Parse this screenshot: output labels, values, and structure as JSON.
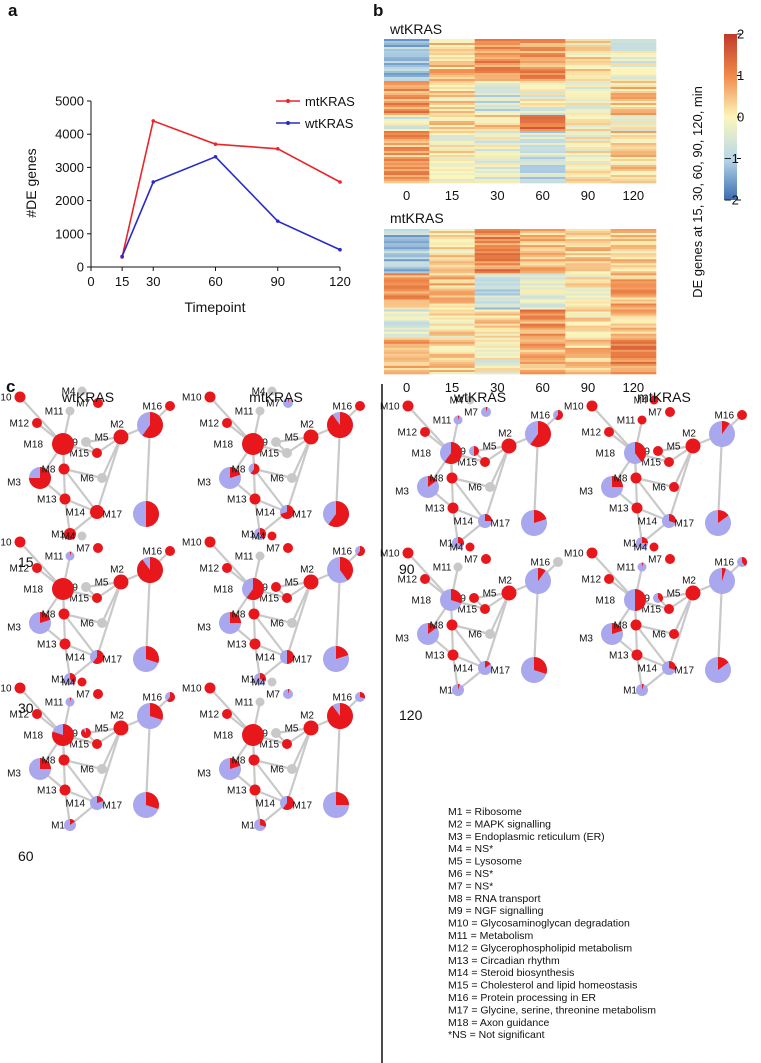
{
  "panel_labels": {
    "a": "a",
    "b": "b",
    "c": "c"
  },
  "chart_data": [
    {
      "type": "line",
      "x": [
        15,
        30,
        60,
        90,
        120
      ],
      "series": [
        {
          "name": "mtKRAS",
          "color": "#e8262b",
          "values": [
            300,
            4400,
            3700,
            3560,
            2560
          ]
        },
        {
          "name": "wtKRAS",
          "color": "#2a2ac8",
          "values": [
            320,
            2560,
            3320,
            1380,
            520
          ]
        }
      ],
      "xticks": [
        "0",
        "15",
        "30",
        "60",
        "90",
        "120"
      ],
      "yticks": [
        "0",
        "1000",
        "2000",
        "3000",
        "4000",
        "5000"
      ],
      "xlim": [
        0,
        120
      ],
      "ylim": [
        0,
        5000
      ],
      "xlabel": "Timepoint",
      "ylabel": "#DE genes"
    },
    {
      "type": "heatmap",
      "title": "wtKRAS",
      "columns": [
        "0",
        "15",
        "30",
        "60",
        "90",
        "120"
      ]
    },
    {
      "type": "heatmap",
      "title": "mtKRAS",
      "columns": [
        "0",
        "15",
        "30",
        "60",
        "90",
        "120"
      ]
    }
  ],
  "heatmap": {
    "colorbar_ticks": [
      "2",
      "1",
      "0",
      "−1",
      "−2"
    ],
    "colorbar_values": [
      2,
      1,
      0,
      -1,
      -2
    ],
    "side_label": "DE genes at 15, 30, 60, 90, 120, min",
    "colors": {
      "high": "#c0392b",
      "mid": "#fcf6bc",
      "low": "#3a6cb0"
    }
  },
  "networks": {
    "column_titles": [
      "wtKRAS",
      "mtKRAS",
      "wtKRAS",
      "mtKRAS"
    ],
    "timepoints": [
      "15",
      "30",
      "60",
      "90",
      "120"
    ],
    "node_labels": [
      "M1",
      "M2",
      "M3",
      "M4",
      "M5",
      "M6",
      "M7",
      "M8",
      "M9",
      "M10",
      "M11",
      "M12",
      "M13",
      "M14",
      "M15",
      "M16",
      "M17",
      "M18"
    ],
    "colors": {
      "up": "#e8171b",
      "down": "#a9a7ee",
      "ns": "#c8c8c8",
      "edge": "#c9c9c9"
    },
    "panels": [
      {
        "fractions": [
          1,
          0.6,
          0.75,
          -1,
          1,
          -1,
          1,
          1,
          -1,
          1,
          -1,
          1,
          1,
          1,
          1,
          1,
          0.5,
          1
        ]
      },
      {
        "fractions": [
          0.4,
          0.9,
          0.2,
          -1,
          1,
          -1,
          0.05,
          0.6,
          -1,
          1,
          -1,
          1,
          1,
          0.7,
          -1,
          1,
          0.6,
          1
        ]
      },
      {
        "fractions": [
          0.4,
          0.9,
          0.2,
          -1,
          1,
          -1,
          1,
          1,
          -1,
          1,
          0.05,
          1,
          1,
          0.6,
          1,
          1,
          0.3,
          1
        ]
      },
      {
        "fractions": [
          0.3,
          0.4,
          0.25,
          1,
          1,
          -1,
          1,
          1,
          1,
          1,
          -1,
          1,
          1,
          0.5,
          1,
          0.6,
          0.2,
          0.6
        ]
      },
      {
        "fractions": [
          0.15,
          0.3,
          0.25,
          1,
          1,
          -1,
          1,
          1,
          0.9,
          1,
          0.05,
          1,
          1,
          0.2,
          1,
          0.6,
          0.3,
          0.8
        ]
      },
      {
        "fractions": [
          0.3,
          0.9,
          0.2,
          -1,
          1,
          -1,
          0.05,
          1,
          -1,
          1,
          -1,
          1,
          1,
          0.6,
          1,
          0.3,
          0.25,
          1
        ]
      },
      {
        "fractions": [
          0.3,
          0.6,
          0.15,
          -1,
          1,
          -1,
          0.05,
          1,
          0.5,
          1,
          0.05,
          1,
          1,
          0.25,
          1,
          0.6,
          0.2,
          0.6
        ]
      },
      {
        "fractions": [
          0.25,
          0.1,
          0.25,
          1,
          1,
          1,
          1,
          1,
          1,
          1,
          1,
          1,
          1,
          0.3,
          1,
          1,
          0.15,
          0.4
        ]
      },
      {
        "fractions": [
          0.05,
          0.1,
          0.15,
          1,
          1,
          -1,
          1,
          1,
          1,
          1,
          -1,
          1,
          1,
          0.15,
          1,
          -1,
          0.3,
          0.3
        ]
      },
      {
        "fractions": [
          0.05,
          0.05,
          0.2,
          1,
          1,
          1,
          1,
          1,
          0.4,
          1,
          0.05,
          1,
          1,
          0.3,
          1,
          0.4,
          0.15,
          0.5
        ]
      }
    ]
  },
  "legend": [
    "M1 = Ribosome",
    "M2 = MAPK signalling",
    "M3 = Endoplasmic reticulum (ER)",
    "M4 = NS*",
    "M5 = Lysosome",
    "M6 = NS*",
    "M7 = NS*",
    "M8 = RNA transport",
    "M9 = NGF signalling",
    "M10 = Glycosaminoglycan degradation",
    "M11 = Metabolism",
    "M12 = Glycerophospholipid metabolism",
    "M13 = Circadian rhythm",
    "M14 = Steroid biosynthesis",
    "M15 = Cholesterol and lipid homeostasis",
    "M16 = Protein processing in ER",
    "M17 = Glycine, serine, threonine metabolism",
    "M18 = Axon guidance",
    "*NS = Not significant"
  ]
}
